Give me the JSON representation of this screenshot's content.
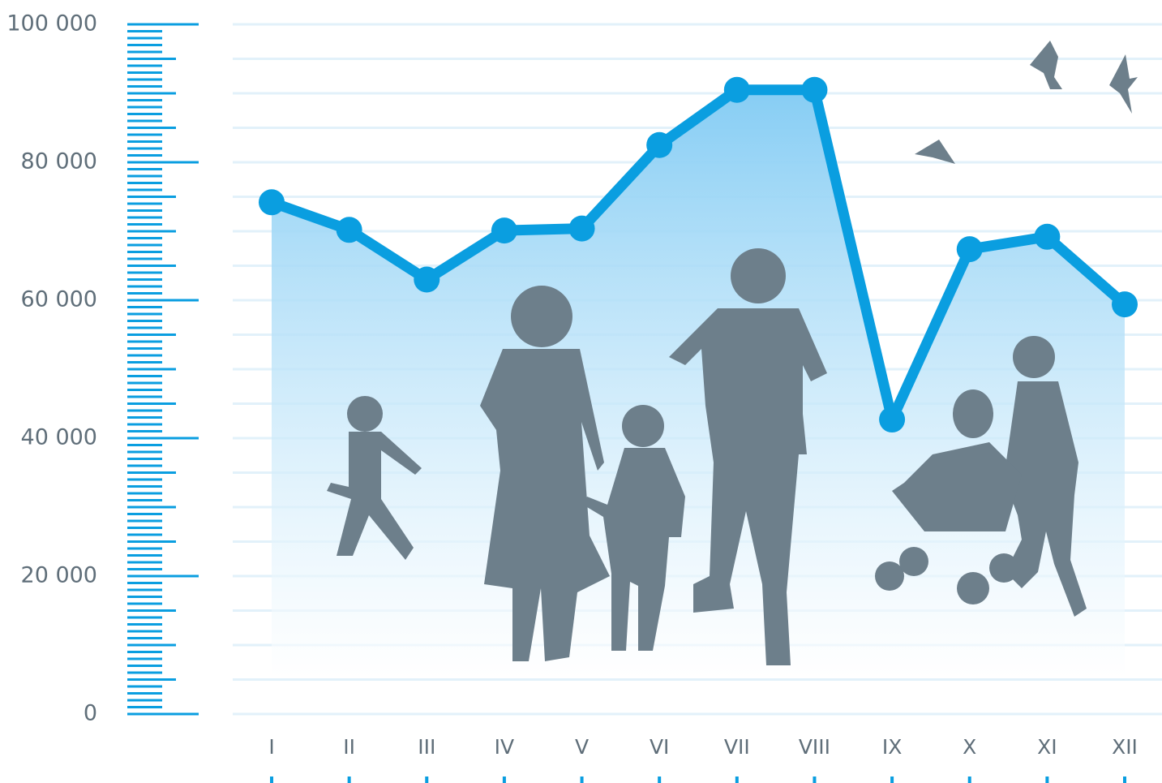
{
  "chart_data": {
    "type": "line",
    "categories": [
      "I",
      "II",
      "III",
      "IV",
      "V",
      "VI",
      "VII",
      "VIII",
      "IX",
      "X",
      "XI",
      "XII"
    ],
    "values": [
      74200,
      70200,
      63000,
      70100,
      70400,
      82500,
      90500,
      90500,
      42700,
      67400,
      69200,
      59400
    ],
    "color": "#0a9ee0",
    "area": true,
    "ylim": [
      0,
      100000
    ],
    "yticks": [
      0,
      {
        "value": 20000,
        "label": "20 000"
      },
      {
        "value": 40000,
        "label": "40 000"
      },
      {
        "value": 60000,
        "label": "60 000"
      },
      {
        "value": 80000,
        "label": "80 000"
      },
      {
        "value": 100000,
        "label": "100 000"
      }
    ],
    "grid": true
  }
}
